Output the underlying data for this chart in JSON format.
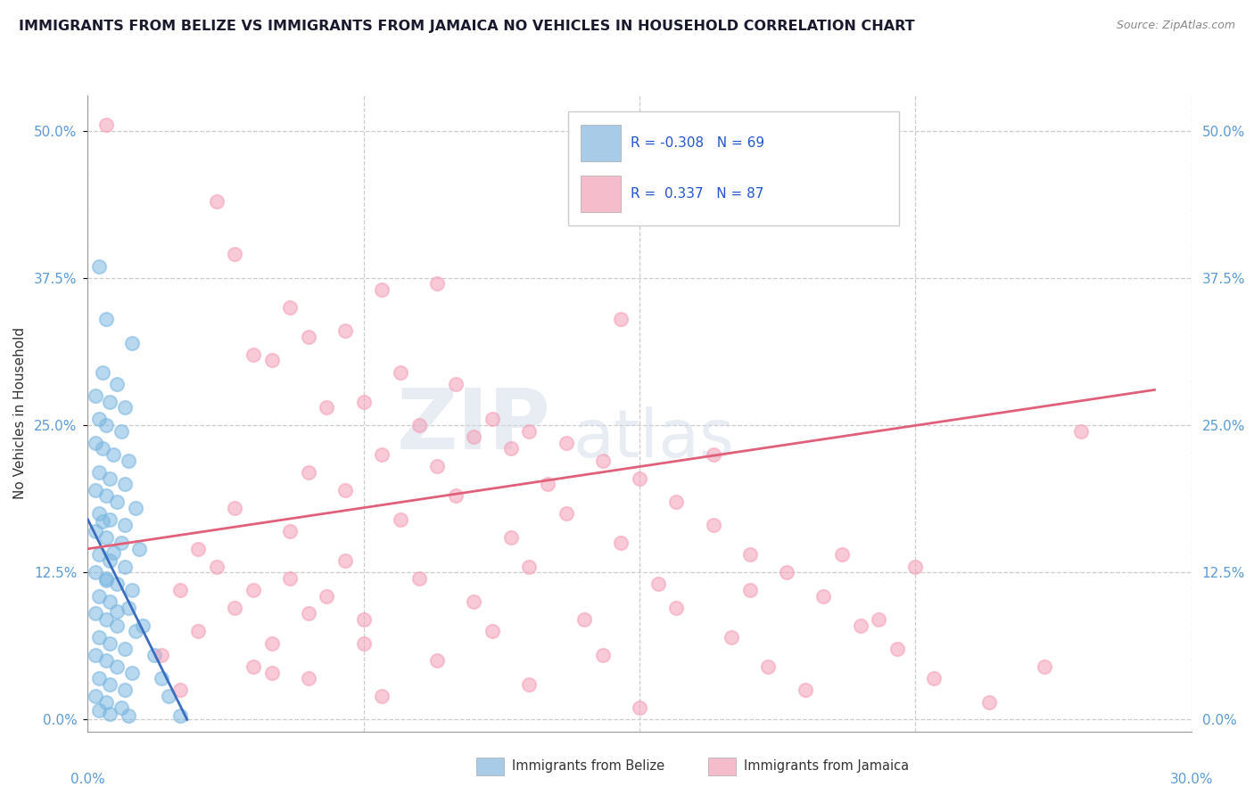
{
  "title": "IMMIGRANTS FROM BELIZE VS IMMIGRANTS FROM JAMAICA NO VEHICLES IN HOUSEHOLD CORRELATION CHART",
  "source": "Source: ZipAtlas.com",
  "ylabel": "No Vehicles in Household",
  "ytick_vals": [
    0.0,
    12.5,
    25.0,
    37.5,
    50.0
  ],
  "ytick_labels": [
    "0.0%",
    "12.5%",
    "25.0%",
    "37.5%",
    "50.0%"
  ],
  "xlim": [
    0.0,
    30.0
  ],
  "ylim": [
    -1.0,
    53.0
  ],
  "belize_color": "#7db8e0",
  "jamaica_color": "#f4a0b8",
  "belize_legend_color": "#a8cce8",
  "jamaica_legend_color": "#f5bccb",
  "trendline_belize_color": "#3a6dbf",
  "trendline_jamaica_color": "#e0607a",
  "watermark_zip": "ZIP",
  "watermark_atlas": "atlas",
  "belize_scatter": [
    [
      0.3,
      38.5
    ],
    [
      0.5,
      34.0
    ],
    [
      1.2,
      32.0
    ],
    [
      0.4,
      29.5
    ],
    [
      0.8,
      28.5
    ],
    [
      0.2,
      27.5
    ],
    [
      0.6,
      27.0
    ],
    [
      1.0,
      26.5
    ],
    [
      0.3,
      25.5
    ],
    [
      0.5,
      25.0
    ],
    [
      0.9,
      24.5
    ],
    [
      0.2,
      23.5
    ],
    [
      0.4,
      23.0
    ],
    [
      0.7,
      22.5
    ],
    [
      1.1,
      22.0
    ],
    [
      0.3,
      21.0
    ],
    [
      0.6,
      20.5
    ],
    [
      1.0,
      20.0
    ],
    [
      0.2,
      19.5
    ],
    [
      0.5,
      19.0
    ],
    [
      0.8,
      18.5
    ],
    [
      1.3,
      18.0
    ],
    [
      0.3,
      17.5
    ],
    [
      0.6,
      17.0
    ],
    [
      1.0,
      16.5
    ],
    [
      0.2,
      16.0
    ],
    [
      0.5,
      15.5
    ],
    [
      0.9,
      15.0
    ],
    [
      1.4,
      14.5
    ],
    [
      0.3,
      14.0
    ],
    [
      0.6,
      13.5
    ],
    [
      1.0,
      13.0
    ],
    [
      0.2,
      12.5
    ],
    [
      0.5,
      12.0
    ],
    [
      0.8,
      11.5
    ],
    [
      1.2,
      11.0
    ],
    [
      0.3,
      10.5
    ],
    [
      0.6,
      10.0
    ],
    [
      1.1,
      9.5
    ],
    [
      0.2,
      9.0
    ],
    [
      0.5,
      8.5
    ],
    [
      0.8,
      8.0
    ],
    [
      1.3,
      7.5
    ],
    [
      0.3,
      7.0
    ],
    [
      0.6,
      6.5
    ],
    [
      1.0,
      6.0
    ],
    [
      0.2,
      5.5
    ],
    [
      0.5,
      5.0
    ],
    [
      0.8,
      4.5
    ],
    [
      1.2,
      4.0
    ],
    [
      0.3,
      3.5
    ],
    [
      0.6,
      3.0
    ],
    [
      1.0,
      2.5
    ],
    [
      0.2,
      2.0
    ],
    [
      0.5,
      1.5
    ],
    [
      0.9,
      1.0
    ],
    [
      0.3,
      0.8
    ],
    [
      0.6,
      0.5
    ],
    [
      1.1,
      0.3
    ],
    [
      1.5,
      8.0
    ],
    [
      1.8,
      5.5
    ],
    [
      2.0,
      3.5
    ],
    [
      2.2,
      2.0
    ],
    [
      2.5,
      0.3
    ],
    [
      0.4,
      16.8
    ],
    [
      0.7,
      14.2
    ],
    [
      0.5,
      11.8
    ],
    [
      0.8,
      9.2
    ]
  ],
  "jamaica_scatter": [
    [
      0.5,
      50.5
    ],
    [
      3.5,
      44.0
    ],
    [
      4.0,
      39.5
    ],
    [
      5.5,
      35.0
    ],
    [
      14.5,
      34.0
    ],
    [
      8.0,
      36.5
    ],
    [
      9.5,
      37.0
    ],
    [
      6.0,
      32.5
    ],
    [
      7.0,
      33.0
    ],
    [
      4.5,
      31.0
    ],
    [
      5.0,
      30.5
    ],
    [
      8.5,
      29.5
    ],
    [
      10.0,
      28.5
    ],
    [
      7.5,
      27.0
    ],
    [
      6.5,
      26.5
    ],
    [
      11.0,
      25.5
    ],
    [
      9.0,
      25.0
    ],
    [
      12.0,
      24.5
    ],
    [
      10.5,
      24.0
    ],
    [
      13.0,
      23.5
    ],
    [
      11.5,
      23.0
    ],
    [
      8.0,
      22.5
    ],
    [
      14.0,
      22.0
    ],
    [
      9.5,
      21.5
    ],
    [
      6.0,
      21.0
    ],
    [
      15.0,
      20.5
    ],
    [
      12.5,
      20.0
    ],
    [
      7.0,
      19.5
    ],
    [
      10.0,
      19.0
    ],
    [
      16.0,
      18.5
    ],
    [
      4.0,
      18.0
    ],
    [
      13.0,
      17.5
    ],
    [
      8.5,
      17.0
    ],
    [
      17.0,
      16.5
    ],
    [
      5.5,
      16.0
    ],
    [
      11.5,
      15.5
    ],
    [
      14.5,
      15.0
    ],
    [
      3.0,
      14.5
    ],
    [
      18.0,
      14.0
    ],
    [
      7.0,
      13.5
    ],
    [
      12.0,
      13.0
    ],
    [
      19.0,
      12.5
    ],
    [
      9.0,
      12.0
    ],
    [
      15.5,
      11.5
    ],
    [
      4.5,
      11.0
    ],
    [
      20.0,
      10.5
    ],
    [
      10.5,
      10.0
    ],
    [
      16.0,
      9.5
    ],
    [
      6.0,
      9.0
    ],
    [
      13.5,
      8.5
    ],
    [
      21.0,
      8.0
    ],
    [
      11.0,
      7.5
    ],
    [
      17.5,
      7.0
    ],
    [
      7.5,
      6.5
    ],
    [
      22.0,
      6.0
    ],
    [
      14.0,
      5.5
    ],
    [
      9.5,
      5.0
    ],
    [
      18.5,
      4.5
    ],
    [
      5.0,
      4.0
    ],
    [
      23.0,
      3.5
    ],
    [
      12.0,
      3.0
    ],
    [
      19.5,
      2.5
    ],
    [
      8.0,
      2.0
    ],
    [
      24.5,
      1.5
    ],
    [
      15.0,
      1.0
    ],
    [
      3.5,
      13.0
    ],
    [
      5.5,
      12.0
    ],
    [
      2.5,
      11.0
    ],
    [
      6.5,
      10.5
    ],
    [
      4.0,
      9.5
    ],
    [
      7.5,
      8.5
    ],
    [
      3.0,
      7.5
    ],
    [
      5.0,
      6.5
    ],
    [
      2.0,
      5.5
    ],
    [
      4.5,
      4.5
    ],
    [
      6.0,
      3.5
    ],
    [
      2.5,
      2.5
    ],
    [
      27.0,
      24.5
    ],
    [
      26.0,
      4.5
    ],
    [
      20.5,
      14.0
    ],
    [
      22.5,
      13.0
    ],
    [
      17.0,
      22.5
    ],
    [
      18.0,
      11.0
    ],
    [
      21.5,
      8.5
    ]
  ],
  "belize_trend_x": [
    0.0,
    2.7
  ],
  "belize_trend_y": [
    17.0,
    0.0
  ],
  "jamaica_trend_x": [
    0.0,
    29.0
  ],
  "jamaica_trend_y": [
    14.5,
    28.0
  ]
}
